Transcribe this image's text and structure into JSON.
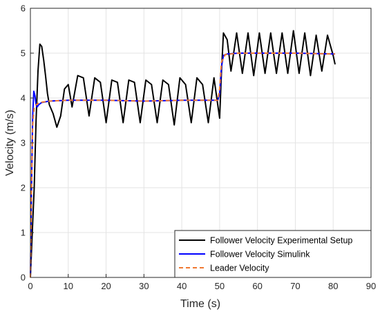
{
  "chart_data": {
    "type": "line",
    "xlabel": "Time (s)",
    "ylabel": "Velocity (m/s)",
    "xlim": [
      0,
      90
    ],
    "ylim": [
      0,
      6
    ],
    "xticks": [
      "0",
      "10",
      "20",
      "30",
      "40",
      "50",
      "60",
      "70",
      "80",
      "90"
    ],
    "yticks": [
      "0",
      "1",
      "2",
      "3",
      "4",
      "5",
      "6"
    ],
    "grid": true,
    "legend_position": "bottom-right",
    "series": [
      {
        "name": "Follower Velocity Experimental Setup",
        "color": "#000000",
        "style": "solid",
        "x": [
          0,
          0.5,
          1.0,
          1.5,
          2.0,
          2.5,
          3.0,
          3.5,
          4.0,
          4.5,
          5.0,
          6.0,
          7.0,
          8.0,
          9.0,
          10.0,
          11.0,
          12.5,
          14.0,
          15.5,
          17.0,
          18.5,
          20.0,
          21.5,
          23.0,
          24.5,
          26.0,
          27.5,
          29.0,
          30.5,
          32.0,
          33.5,
          35.0,
          36.5,
          38.0,
          39.5,
          41.0,
          42.5,
          44.0,
          45.5,
          47.0,
          48.5,
          50.0,
          50.5,
          51.0,
          52.0,
          53.0,
          54.5,
          56.0,
          57.5,
          59.0,
          60.5,
          62.0,
          63.5,
          65.0,
          66.5,
          68.0,
          69.5,
          71.0,
          72.5,
          74.0,
          75.5,
          77.0,
          78.5,
          80.0,
          80.5
        ],
        "y": [
          0,
          1.0,
          2.0,
          3.5,
          4.6,
          5.2,
          5.15,
          4.85,
          4.5,
          4.1,
          3.85,
          3.65,
          3.35,
          3.6,
          4.2,
          4.3,
          3.8,
          4.5,
          4.45,
          3.6,
          4.45,
          4.35,
          3.45,
          4.4,
          4.35,
          3.45,
          4.4,
          4.35,
          3.45,
          4.4,
          4.3,
          3.45,
          4.4,
          4.3,
          3.4,
          4.45,
          4.3,
          3.45,
          4.45,
          4.3,
          3.45,
          4.45,
          3.55,
          4.6,
          5.45,
          5.3,
          4.6,
          5.45,
          4.55,
          5.45,
          4.5,
          5.45,
          4.55,
          5.45,
          4.55,
          5.45,
          4.55,
          5.5,
          4.55,
          5.45,
          4.5,
          5.4,
          4.6,
          5.4,
          4.95,
          4.75
        ]
      },
      {
        "name": "Follower Velocity Simulink",
        "color": "#0000ff",
        "style": "solid",
        "x": [
          0,
          0.3,
          0.6,
          0.9,
          1.2,
          1.5,
          1.8,
          2.2,
          3.0,
          5.0,
          10.0,
          20.0,
          30.0,
          40.0,
          49.5,
          50.0,
          50.5,
          51.0,
          52.0,
          55.0,
          60.0,
          70.0,
          80.5
        ],
        "y": [
          0,
          2.0,
          3.6,
          4.15,
          4.05,
          3.85,
          3.8,
          3.85,
          3.9,
          3.93,
          3.95,
          3.95,
          3.93,
          3.95,
          3.95,
          4.1,
          4.7,
          4.95,
          4.98,
          5.0,
          5.0,
          5.0,
          4.98
        ]
      },
      {
        "name": "Leader Velocity",
        "color": "#f07830",
        "style": "dashed",
        "x": [
          0,
          0.3,
          0.6,
          1.0,
          1.5,
          2.5,
          5.0,
          10.0,
          20.0,
          30.0,
          40.0,
          49.5,
          50.0,
          50.5,
          51.5,
          55.0,
          60.0,
          70.0,
          80.5
        ],
        "y": [
          0,
          2.0,
          3.4,
          3.8,
          3.85,
          3.9,
          3.93,
          3.95,
          3.95,
          3.93,
          3.95,
          3.95,
          4.2,
          4.8,
          4.97,
          5.0,
          5.0,
          5.0,
          4.98
        ]
      }
    ]
  }
}
